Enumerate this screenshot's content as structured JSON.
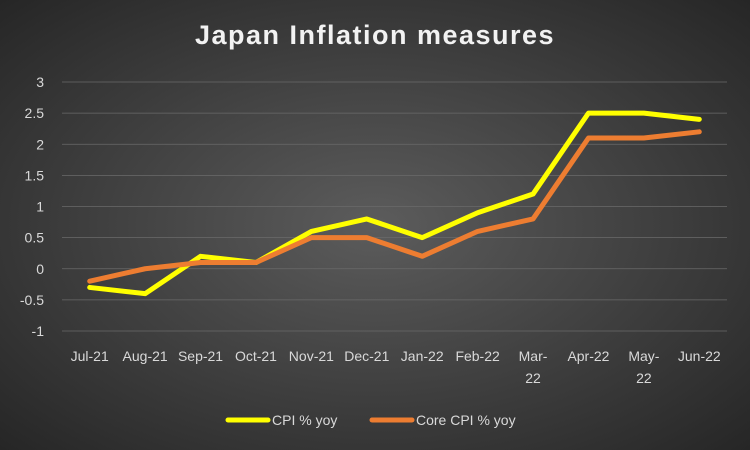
{
  "chart_data": {
    "type": "line",
    "title": "Japan Inflation measures",
    "xlabel": "",
    "ylabel": "",
    "categories": [
      "Jul-21",
      "Aug-21",
      "Sep-21",
      "Oct-21",
      "Nov-21",
      "Dec-21",
      "Jan-22",
      "Feb-22",
      "Mar-22",
      "Apr-22",
      "May-22",
      "Jun-22"
    ],
    "series": [
      {
        "name": "CPI % yoy",
        "color": "#ffff00",
        "values": [
          -0.3,
          -0.4,
          0.2,
          0.1,
          0.6,
          0.8,
          0.5,
          0.9,
          1.2,
          2.5,
          2.5,
          2.4
        ]
      },
      {
        "name": "Core CPI % yoy",
        "color": "#ed7d31",
        "values": [
          -0.2,
          0.0,
          0.1,
          0.1,
          0.5,
          0.5,
          0.2,
          0.6,
          0.8,
          2.1,
          2.1,
          2.2
        ]
      }
    ],
    "ylim": [
      -1,
      3
    ],
    "yticks": [
      "-1",
      "-0.5",
      "0",
      "0.5",
      "1",
      "1.5",
      "2",
      "2.5",
      "3"
    ],
    "grid": true,
    "legend": "bottom"
  }
}
